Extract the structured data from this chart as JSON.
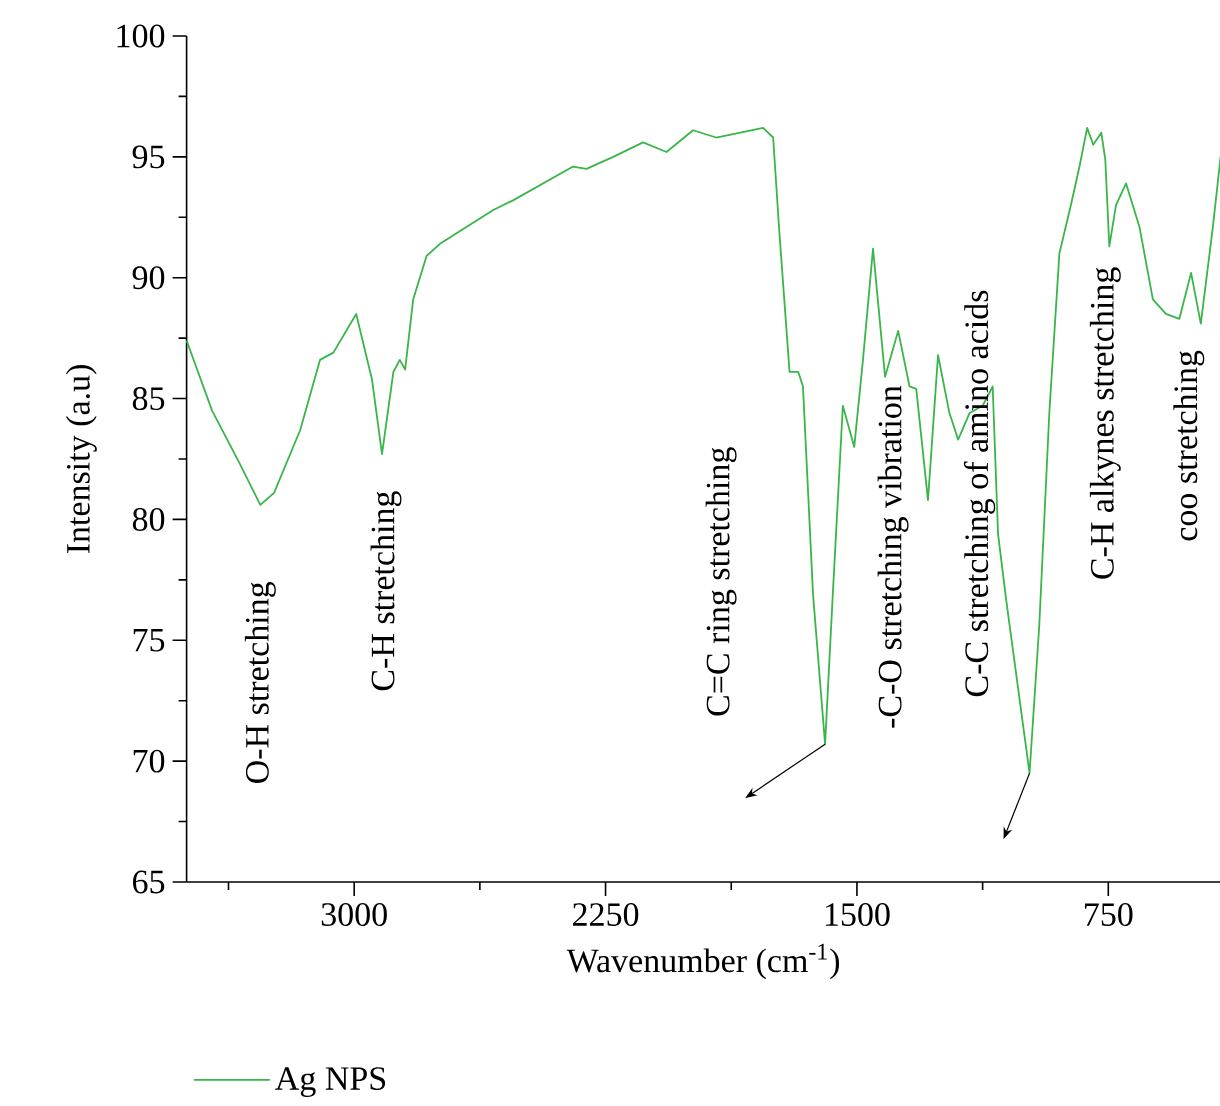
{
  "chart_data": {
    "type": "line",
    "xlabel": "Wavenumber (cm$^{-1}$)",
    "ylabel": "Intensity (a.u)",
    "xlim": [
      3500,
      415
    ],
    "ylim": [
      65,
      100
    ],
    "xticks": [
      {
        "value": 3375,
        "label": null
      },
      3000,
      {
        "value": 2625,
        "label": null
      },
      2250,
      {
        "value": 1875,
        "label": null
      },
      1500,
      {
        "value": 1125,
        "label": null
      },
      750
    ],
    "yticks": [
      65,
      {
        "value": 67.5,
        "label": null
      },
      70,
      {
        "value": 72.5,
        "label": null
      },
      75,
      {
        "value": 77.5,
        "label": null
      },
      80,
      {
        "value": 82.5,
        "label": null
      },
      85,
      {
        "value": 87.5,
        "label": null
      },
      90,
      {
        "value": 92.5,
        "label": null
      },
      95,
      {
        "value": 97.5,
        "label": null
      },
      100
    ],
    "x": [
      3500,
      3424,
      3341,
      3280,
      3239,
      3161,
      3102,
      3062,
      2994,
      2947,
      2917,
      2883,
      2864,
      2848,
      2824,
      2784,
      2744,
      2585,
      2526,
      2347,
      2307,
      2227,
      2138,
      2068,
      1989,
      1920,
      1780,
      1750,
      1731,
      1701,
      1675,
      1661,
      1631,
      1595,
      1572,
      1542,
      1508,
      1482,
      1452,
      1416,
      1377,
      1343,
      1323,
      1288,
      1258,
      1224,
      1198,
      1164,
      1125,
      1095,
      1079,
      1055,
      985,
      956,
      926,
      896,
      860,
      836,
      813,
      795,
      771,
      759,
      747,
      727,
      697,
      657,
      617,
      578,
      538,
      503,
      474,
      438,
      415
    ],
    "series": [
      {
        "name": "Ag NPS",
        "color": "#39b54a",
        "values": [
          87.4,
          84.5,
          82.3,
          80.6,
          81.1,
          83.7,
          86.6,
          86.9,
          88.5,
          85.8,
          82.7,
          86.1,
          86.6,
          86.2,
          89.1,
          90.9,
          91.4,
          92.8,
          93.2,
          94.6,
          94.5,
          95.0,
          95.6,
          95.2,
          96.1,
          95.8,
          96.2,
          95.8,
          91.8,
          86.1,
          86.1,
          85.5,
          76.9,
          70.7,
          76.9,
          84.7,
          83.0,
          86.6,
          91.2,
          85.9,
          87.8,
          85.5,
          85.4,
          80.8,
          86.8,
          84.4,
          83.3,
          84.4,
          84.7,
          85.5,
          79.4,
          76.7,
          69.5,
          75.6,
          84.4,
          91.0,
          93.1,
          94.6,
          96.2,
          95.5,
          96.0,
          94.9,
          91.3,
          93.0,
          93.9,
          92.1,
          89.1,
          88.5,
          88.3,
          90.2,
          88.1,
          92.1,
          95.0
        ]
      }
    ],
    "annotations": [
      {
        "text": "O-H stretching",
        "x": 3280,
        "y": 80.6
      },
      {
        "text": "C-H stretching",
        "x": 2917,
        "y": 82.7
      },
      {
        "text": "C=C ring stretching",
        "x": 1595,
        "y": 70.7
      },
      {
        "text": "-C-O stretching vibration",
        "x": 1416,
        "y": 85.9
      },
      {
        "text": "C-C stretching of amino acids",
        "x": 985,
        "y": 69.5
      },
      {
        "text": "C-H alkynes stretching",
        "x": 747,
        "y": 91.3
      },
      {
        "text": "coo stretching",
        "x": 474,
        "y": 88.1
      }
    ],
    "legend": "bottom",
    "line_style": "solid"
  }
}
